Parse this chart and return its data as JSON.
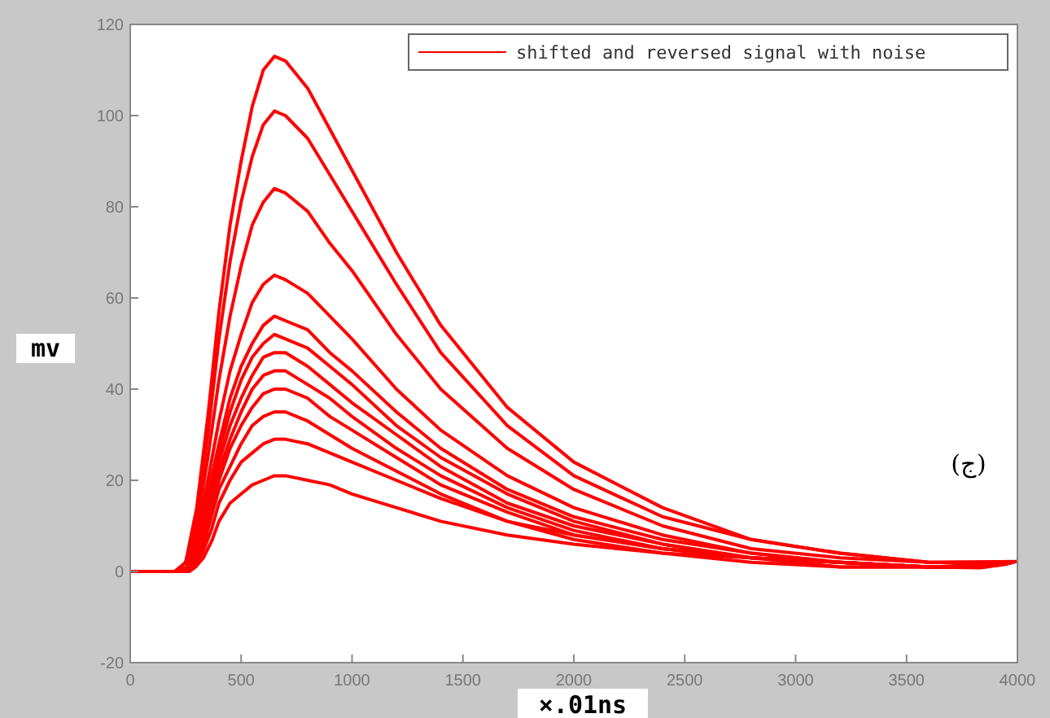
{
  "chart_data": {
    "type": "line",
    "xlabel": "×.01ns",
    "ylabel": "mv",
    "xlim": [
      0,
      4000
    ],
    "xticks": [
      0,
      500,
      1000,
      1500,
      2000,
      2500,
      3000,
      3500,
      4000
    ],
    "ylim": [
      -20,
      120
    ],
    "yticks": [
      -20,
      0,
      20,
      40,
      60,
      80,
      100,
      120
    ],
    "legend": "top right",
    "marker": "none",
    "line_style": "solid",
    "annotations": [
      "(ج)"
    ],
    "x": [
      0,
      200,
      250,
      300,
      350,
      400,
      450,
      500,
      550,
      600,
      650,
      700,
      800,
      900,
      1000,
      1200,
      1400,
      1700,
      2000,
      2400,
      2800,
      3200,
      3600,
      4000
    ],
    "series": [
      {
        "name": "shifted and reversed signal with noise",
        "color": "#ff0000",
        "values": [
          0,
          0,
          2,
          14,
          34,
          57,
          76,
          90,
          102,
          110,
          113,
          112,
          106,
          97,
          88,
          70,
          54,
          36,
          24,
          14,
          7,
          4,
          2,
          2.2
        ]
      },
      {
        "color": "#ff0000",
        "x": [
          206,
          250,
          300,
          350,
          400,
          450,
          500,
          550,
          600,
          650,
          700,
          800,
          900,
          1000,
          1200,
          1400,
          1700,
          2000,
          2400,
          2800,
          3200,
          3600,
          3985
        ],
        "values": [
          0,
          2,
          12,
          30,
          51,
          68,
          81,
          91,
          98,
          101,
          100,
          95,
          87,
          79,
          63,
          48,
          32,
          21,
          12,
          7,
          4,
          2,
          2
        ]
      },
      {
        "color": "#ff0000",
        "x": [
          212,
          250,
          300,
          350,
          400,
          450,
          500,
          550,
          600,
          650,
          700,
          800,
          900,
          1000,
          1200,
          1400,
          1700,
          2000,
          2400,
          2800,
          3200,
          3600,
          3970
        ],
        "values": [
          0,
          2,
          10,
          25,
          42,
          56,
          67,
          76,
          81,
          84,
          83,
          79,
          72,
          66,
          52,
          40,
          27,
          18,
          10,
          5,
          3,
          2,
          1.8
        ]
      },
      {
        "color": "#ff0000",
        "x": [
          218,
          255,
          300,
          350,
          400,
          450,
          500,
          550,
          600,
          650,
          700,
          800,
          900,
          1000,
          1200,
          1400,
          1700,
          2000,
          2400,
          2800,
          3200,
          3600,
          3955
        ],
        "values": [
          0,
          1,
          8,
          20,
          33,
          44,
          52,
          59,
          63,
          65,
          64,
          61,
          56,
          51,
          40,
          31,
          21,
          14,
          8,
          4,
          2,
          1,
          1.6
        ]
      },
      {
        "color": "#ff0000",
        "x": [
          224,
          260,
          300,
          350,
          400,
          450,
          500,
          550,
          600,
          650,
          700,
          800,
          900,
          1000,
          1200,
          1400,
          1700,
          2000,
          2400,
          2800,
          3200,
          3600,
          3940
        ],
        "values": [
          0,
          1,
          7,
          17,
          28,
          38,
          45,
          50,
          54,
          56,
          55,
          53,
          48,
          44,
          35,
          27,
          18,
          12,
          7,
          4,
          2,
          1,
          1.5
        ]
      },
      {
        "color": "#ff0000",
        "x": [
          230,
          265,
          300,
          350,
          400,
          450,
          500,
          550,
          600,
          650,
          700,
          800,
          900,
          1000,
          1200,
          1400,
          1700,
          2000,
          2400,
          2800,
          3200,
          3600,
          3925
        ],
        "values": [
          0,
          1,
          6,
          16,
          26,
          35,
          42,
          47,
          50,
          52,
          51,
          49,
          45,
          41,
          32,
          25,
          17,
          11,
          6,
          3,
          2,
          1,
          1.4
        ]
      },
      {
        "color": "#ff0000",
        "x": [
          236,
          270,
          305,
          350,
          400,
          450,
          500,
          550,
          600,
          650,
          700,
          800,
          900,
          1000,
          1200,
          1400,
          1700,
          2000,
          2400,
          2800,
          3200,
          3600,
          3910
        ],
        "values": [
          0,
          1,
          6,
          14,
          24,
          32,
          38,
          43,
          47,
          48,
          48,
          45,
          41,
          37,
          30,
          23,
          15,
          10,
          6,
          3,
          2,
          1,
          1.3
        ]
      },
      {
        "color": "#ff0000",
        "x": [
          242,
          275,
          310,
          350,
          400,
          450,
          500,
          550,
          600,
          650,
          700,
          800,
          900,
          1000,
          1200,
          1400,
          1700,
          2000,
          2400,
          2800,
          3200,
          3600,
          3895
        ],
        "values": [
          0,
          1,
          5,
          13,
          22,
          29,
          35,
          40,
          43,
          44,
          44,
          41,
          38,
          34,
          27,
          21,
          14,
          9,
          5,
          3,
          2,
          1,
          1.2
        ]
      },
      {
        "color": "#ff0000",
        "x": [
          248,
          280,
          315,
          355,
          400,
          450,
          500,
          550,
          600,
          650,
          700,
          800,
          900,
          1000,
          1200,
          1400,
          1700,
          2000,
          2400,
          2800,
          3200,
          3600,
          3880
        ],
        "values": [
          0,
          1,
          5,
          12,
          20,
          27,
          32,
          36,
          39,
          40,
          40,
          38,
          34,
          31,
          25,
          19,
          13,
          8,
          5,
          3,
          1,
          1,
          1.1
        ]
      },
      {
        "color": "#ff0000",
        "x": [
          254,
          285,
          320,
          360,
          400,
          450,
          500,
          550,
          600,
          650,
          700,
          800,
          900,
          1000,
          1200,
          1400,
          1700,
          2000,
          2400,
          2800,
          3200,
          3600,
          3865
        ],
        "values": [
          0,
          1,
          4,
          11,
          18,
          23,
          28,
          32,
          34,
          35,
          35,
          33,
          30,
          27,
          22,
          17,
          11,
          7,
          4,
          2,
          1,
          1,
          1
        ]
      },
      {
        "color": "#ff0000",
        "x": [
          260,
          290,
          325,
          365,
          400,
          450,
          500,
          550,
          600,
          650,
          700,
          800,
          900,
          1000,
          1200,
          1400,
          1700,
          2000,
          2400,
          2800,
          3200,
          3600,
          3850
        ],
        "values": [
          0,
          1,
          4,
          9,
          15,
          20,
          24,
          26,
          28,
          29,
          29,
          28,
          26,
          24,
          20,
          16,
          11,
          8,
          5,
          3,
          2,
          1,
          0.9
        ]
      },
      {
        "color": "#ff0000",
        "x": [
          266,
          295,
          330,
          370,
          400,
          450,
          500,
          550,
          600,
          650,
          700,
          800,
          900,
          1000,
          1200,
          1400,
          1700,
          2000,
          2400,
          2800,
          3200,
          3600,
          3835
        ],
        "values": [
          0,
          1,
          3,
          7,
          11,
          15,
          17,
          19,
          20,
          21,
          21,
          20,
          19,
          17,
          14,
          11,
          8,
          6,
          4,
          3,
          2,
          1,
          0.8
        ]
      }
    ]
  }
}
